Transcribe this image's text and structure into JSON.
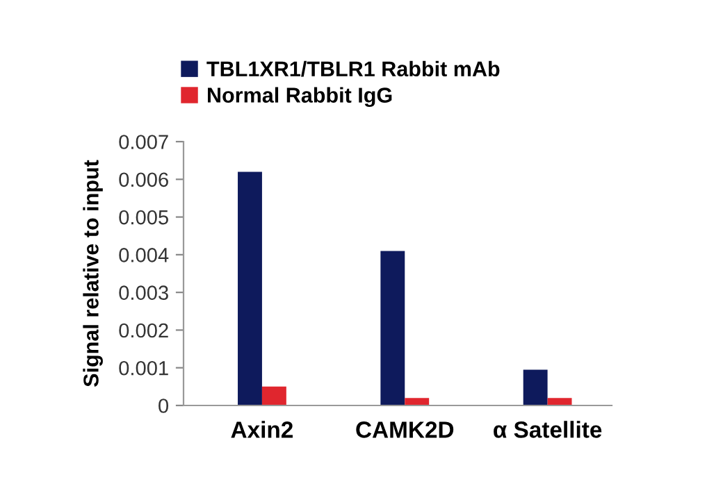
{
  "chart_data": {
    "type": "bar",
    "ylabel": "Signal relative to input",
    "categories": [
      "Axin2",
      "CAMK2D",
      "α Satellite"
    ],
    "series": [
      {
        "name": "TBL1XR1/TBLR1 Rabbit mAb",
        "color": "#0e1a5c",
        "values": [
          0.0062,
          0.0041,
          0.00095
        ]
      },
      {
        "name": "Normal Rabbit IgG",
        "color": "#e0262e",
        "values": [
          0.0005,
          0.0002,
          0.0002
        ]
      }
    ],
    "ylim": [
      0,
      0.007
    ],
    "yticks": [
      {
        "value": 0,
        "label": "0"
      },
      0.001,
      0.002,
      0.003,
      0.004,
      0.005,
      0.006,
      0.007
    ],
    "grid": false,
    "legend": "top left"
  }
}
